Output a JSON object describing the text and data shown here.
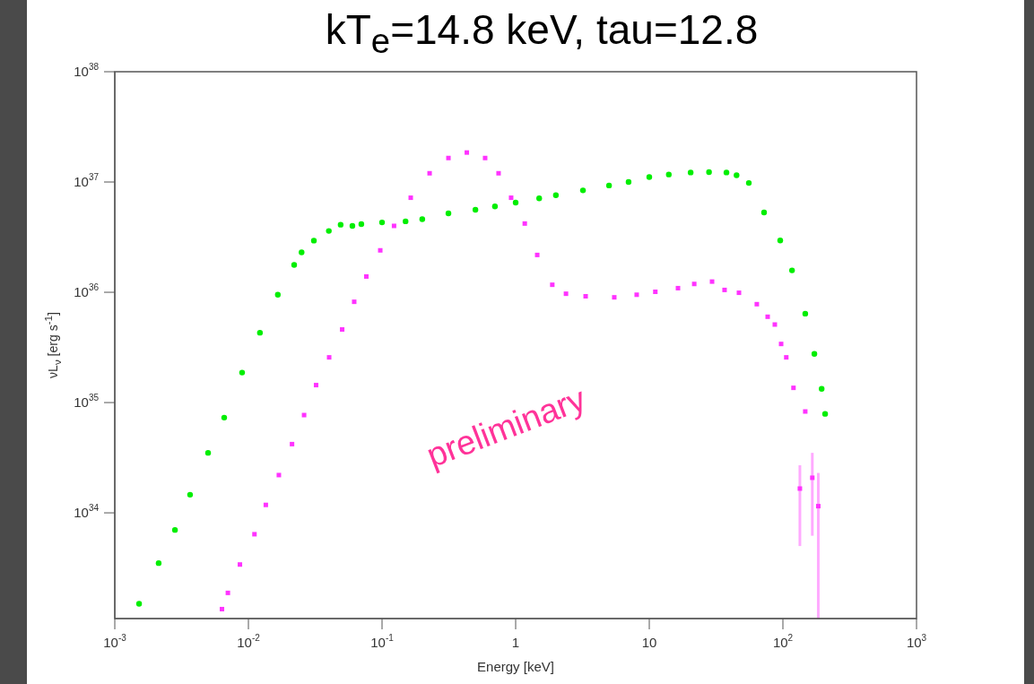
{
  "chart_data": {
    "type": "scatter",
    "title": "kT$_{e}$=14.8 keV, tau=12.8",
    "xlabel": "Energy [keV]",
    "ylabel": "νL$_{ν}$ [erg s$^{-1}$]",
    "log": "xy",
    "xlim": [
      0.001,
      1000
    ],
    "ylim": [
      1.1e+33,
      1e+38
    ],
    "xticks": [
      {
        "value": 0.001,
        "label": "10$^{-3}$"
      },
      {
        "value": 0.01,
        "label": "10$^{-2}$"
      },
      {
        "value": 0.1,
        "label": "10$^{-1}$"
      },
      1,
      10,
      {
        "value": 100,
        "label": "10$^{2}$"
      },
      {
        "value": 1000,
        "label": "10$^{3}$"
      }
    ],
    "yticks": [
      {
        "value": 1e+34,
        "label": "10$^{34}$"
      },
      {
        "value": 1e+35,
        "label": "10$^{35}$"
      },
      {
        "value": 1e+36,
        "label": "10$^{36}$"
      },
      {
        "value": 1e+37,
        "label": "10$^{37}$"
      },
      {
        "value": 1e+38,
        "label": "10$^{38}$"
      }
    ],
    "annotations": [
      "preliminary"
    ],
    "series": [
      {
        "color": "#00ee00",
        "marker": "circle",
        "x": [
          0.00152,
          0.00213,
          0.00282,
          0.00366,
          0.00499,
          0.00659,
          0.00897,
          0.0122,
          0.0166,
          0.022,
          0.025,
          0.0309,
          0.04,
          0.049,
          0.06,
          0.07,
          0.1,
          0.15,
          0.2,
          0.314,
          0.5,
          0.7,
          1,
          1.5,
          2,
          3.19,
          5,
          7,
          10,
          14,
          20.4,
          28,
          37.8,
          45,
          55.6,
          72.3,
          95.5,
          117,
          147,
          172,
          195,
          207
        ],
        "values": [
          1.5e+33,
          3.5e+33,
          7e+33,
          1.46e+34,
          3.5e+34,
          7.3e+34,
          1.87e+35,
          4.3e+35,
          9.5e+35,
          1.77e+36,
          2.3e+36,
          2.94e+36,
          3.6e+36,
          4.1e+36,
          4e+36,
          4.15e+36,
          4.3e+36,
          4.4e+36,
          4.6e+36,
          5.2e+36,
          5.6e+36,
          6e+36,
          6.5e+36,
          7.1e+36,
          7.6e+36,
          8.4e+36,
          9.3e+36,
          1e+37,
          1.11e+37,
          1.17e+37,
          1.22e+37,
          1.23e+37,
          1.22e+37,
          1.15e+37,
          9.8e+36,
          5.3e+36,
          2.95e+36,
          1.58e+36,
          6.4e+35,
          2.76e+35,
          1.33e+35,
          7.9e+34
        ]
      },
      {
        "color": "#ff33ff",
        "marker": "square",
        "x": [
          0.00634,
          0.00702,
          0.00864,
          0.0111,
          0.0135,
          0.0169,
          0.0212,
          0.0261,
          0.0321,
          0.0402,
          0.0503,
          0.0619,
          0.0763,
          0.097,
          0.123,
          0.164,
          0.227,
          0.314,
          0.431,
          0.591,
          0.745,
          0.925,
          1.17,
          1.45,
          1.88,
          2.38,
          3.34,
          5.47,
          8.05,
          11.1,
          16.4,
          21.7,
          29.5,
          36.6,
          46.9,
          63.8,
          76.9,
          87,
          97,
          106,
          120,
          134,
          147,
          166,
          184
        ],
        "values": [
          1.34e+33,
          1.88e+33,
          3.4e+33,
          6.4e+33,
          1.18e+34,
          2.2e+34,
          4.2e+34,
          7.7e+34,
          1.44e+35,
          2.57e+35,
          4.6e+35,
          8.2e+35,
          1.39e+36,
          2.4e+36,
          4e+36,
          7.2e+36,
          1.2e+37,
          1.65e+37,
          1.85e+37,
          1.65e+37,
          1.2e+37,
          7.2e+36,
          4.2e+36,
          2.18e+36,
          1.17e+36,
          9.7e+35,
          9.2e+35,
          9e+35,
          9.5e+35,
          1.01e+36,
          1.09e+36,
          1.19e+36,
          1.25e+36,
          1.05e+36,
          9.9e+35,
          7.8e+35,
          6e+35,
          5.1e+35,
          3.4e+35,
          2.57e+35,
          1.36e+35,
          1.66e+34,
          8.3e+34,
          2.08e+34,
          1.15e+34
        ],
        "errors": [
          null,
          null,
          null,
          null,
          null,
          null,
          null,
          null,
          null,
          null,
          null,
          null,
          null,
          null,
          null,
          null,
          null,
          null,
          null,
          null,
          null,
          null,
          null,
          null,
          null,
          null,
          null,
          null,
          null,
          null,
          null,
          null,
          null,
          null,
          null,
          null,
          null,
          null,
          null,
          null,
          null,
          [
            5e+33,
            2.7e+34
          ],
          null,
          [
            6.2e+33,
            3.5e+34
          ],
          [
            1.1e+33,
            2.3e+34
          ]
        ]
      }
    ]
  }
}
